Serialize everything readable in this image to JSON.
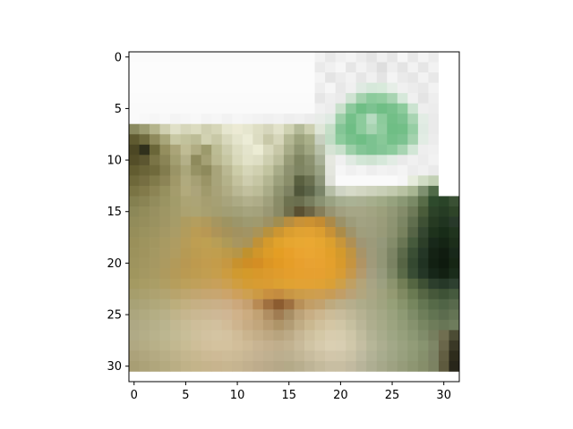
{
  "chart_data": {
    "type": "heatmap",
    "title": "",
    "xlabel": "",
    "ylabel": "",
    "grid": false,
    "xlim": [
      -0.5,
      31.5
    ],
    "ylim": [
      31.5,
      -0.5
    ],
    "x_ticks": [
      0,
      5,
      10,
      15,
      20,
      25,
      30
    ],
    "y_ticks": [
      0,
      5,
      10,
      15,
      20,
      25,
      30
    ],
    "x_tick_labels": [
      "0",
      "5",
      "10",
      "15",
      "20",
      "25",
      "30"
    ],
    "y_tick_labels": [
      "0",
      "5",
      "10",
      "15",
      "20",
      "25",
      "30"
    ],
    "image_size": [
      32,
      32
    ],
    "rows": [
      "#fbfbfb #fbfbfb #fbfbfb #fbfbfb #fbfbfb #fbfbfb #fbfbfb #fbfbfb #fbfbfb #fbfbfb #fbfbfb #fbfbfb #fbfbfb #fbfbfb #fbfbfb #fbfbfb #fbfbfb #fbfbfb #f2f2f2 #e8e8e8 #f0f0f0 #f4f4f4 #ececec #e4e4e4 #f0f0f0 #e6e6e6 #f6f6f6 #e8e8e8 #f4f4f4 #ececec #ffffff #ffffff",
      "#fcfcfc #fcfcfc #fcfcfc #fcfcfc #fcfcfc #fcfcfc #fcfcfc #fcfcfc #fcfcfc #fcfcfc #fcfcfc #fcfcfc #fcfcfc #fcfcfc #fcfcfc #fcfcfc #fcfcfc #fcfcfc #eaeaea #f0f0f0 #f6f6f6 #e6e6e6 #f2f2f2 #eaeaea #dedede #eeeeee #e4e4e4 #f2f2f2 #e6e6e6 #f2f2f2 #ffffff #ffffff",
      "#fcfcfc #fcfcfc #fcfcfc #fcfcfc #fcfcfc #fcfcfc #fcfcfc #fcfcfc #fcfcfc #fcfcfc #fcfcfc #fcfcfc #fcfcfc #fcfcfc #fcfcfc #fcfcfc #fcfcfc #fcfcfc #f4f4f4 #e4e4e4 #ececec #f2f2f2 #e6e6e6 #f0f0f0 #e4e4e4 #f4f4f4 #eaeaea #e6e6e6 #f2f2f2 #e8e8e8 #ffffff #ffffff",
      "#fcfcfc #fcfcfc #fcfcfc #fcfcfc #fcfcfc #fcfcfc #fcfcfc #fcfcfc #fcfcfc #fcfcfc #fcfcfc #fcfcfc #fcfcfc #fcfcfc #fcfcfc #fcfcfc #fcfcfc #fcfcfc #eeeeee #f6f6f6 #e8e8e8 #f0f0f0 #dfeae2 #d6e8da #d8eadb #e6eee7 #f0f0f0 #ececec #e8e8e8 #f2f2f2 #ffffff #ffffff",
      "#fbfbfb #fbfbfb #fbfbfb #fbfbfb #fbfbfb #fbfbfb #fbfbfb #fbfbfb #fbfbfb #fbfbfb #fbfbfb #fbfbfb #fbfbfb #fbfbfb #fbfbfb #fbfbfb #fbfbfb #fbfbfb #e6e6e6 #eeeeee #eaeaea #cfe3d2 #a4d2ae #8ccb9c #92cda0 #a8d4b2 #d6e8da #f0f0f0 #e4e4e4 #eeeeee #ffffff #ffffff",
      "#fafafa #fafafa #fafafa #fafafa #fafafa #fafafa #fafafa #fafafa #fafafa #fafafa #fafafa #fafafa #fafafa #fafafa #fafafa #fafafa #fafafa #fafafa #f0f0f0 #ececec #c8e0cb #8cc99c #6fbe85 #7cc290 #6fbe85 #78c18c #8ccb9c #cbe3d0 #eeeeee #ececec #ffffff #ffffff",
      "#fafafa #f8f8f8 #f6f6f6 #f8f8f8 #f4f4f4 #f6f6f6 #f8f8f8 #f4f4f4 #f6f6f6 #f2f2f2 #f6f6f6 #f4f4f4 #f2f2f2 #f0f0f0 #f2f2f2 #eeeeee #f0f0f0 #ececec #e8ece8 #dfeae2 #9ccfa8 #74c089 #8ccb9c #b6dbc0 #8ccb9c #72bf87 #7cc290 #a8d4b2 #e2ece4 #eaeaea #ffffff #ffffff",
      "#8a8a60 #9c9c72 #b4b48c #cfcfb0 #e0e0c8 #d6d6ba #dcdcc0 #cfcfb0 #d6d6b8 #e6e6cf #ecead4 #e6e6cf #dedec4 #d6d6bc #e2e2ca #cfd2b2 #b4ba98 #cccfb0 #dfe6d8 #c6dfc8 #84c596 #6fbe85 #8ccb9c #a8d4b2 #90cc9f #6fbe85 #72bf87 #96cea4 #dfeae2 #eaeaea #ffffff #ffffff",
      "#5f5a30 #6e6a3e #8e8a5c #a8a67a #c8c8a4 #c2c29c #bcbc96 #d2d2b2 #c8c8a6 #d8d8bc #e4e4cc #ececd6 #dcdcc2 #c8c8a8 #d6d6ba #b4b894 #9ca27c #aab08a #c8d0c0 #c0dcc4 #8ccb9c #78c18c #6fbe85 #7cc290 #88c898 #74c089 #7cc290 #a4d2ae #e2ece4 #ececec #ffffff #ffffff",
      "#4c4724 #30301c #6a6638 #948e5e #aaa478 #c0bc94 #b0ac82 #9c9a6c #bcbc94 #ccccac #dcdcc0 #e4e4cc #ececd4 #d8d8bc #c8c8a8 #a8ac88 #8e9470 #a0a682 #b8c0a8 #d6e3d4 #c8e0cb #9ccfa8 #84c596 #7cc290 #84c596 #8ccb9c #a8d4b2 #d2e6d6 #eeeeee #f0f0f0 #ffffff #ffffff",
      "#544e28 #5c5630 #7a7446 #8a8456 #a29e70 #b4b088 #8e8a5c #a4a074 #bab890 #c6c6a2 #d8d8ba #e2e2c8 #dedec4 #cecfb0 #bcbe9c #989c78 #7e8460 #8c9270 #a8b096 #e6e8e0 #f0f0f0 #e0eae2 #d2e6d6 #cfe3d2 #d6e8da #e2ece4 #eaeaea #f0f0f0 #ececec #f2f2f2 #ffffff #ffffff",
      "#625c30 #6a6438 #706a3c #827c4e #9a9466 #aaa67a #969264 #8e8a5c #a8a47a #bab892 #cccca8 #d6d6b8 #d0d0b0 #c2c4a0 #a8ac88 #8e9270 #7e8462 #868c6a #9aa284 #e4e6de #f6f6f6 #f0f0f0 #f4f4f4 #eeeeee #f2f2f2 #f0f0f0 #f4f4f4 #ececec #f0f0f0 #eaeaea #ffffff #ffffff",
      "#6e683a #766e42 #807a4a #8c8456 #a09868 #b0aa7e #a6a074 #9a9466 #a8a47a #b4b28a #c4c29e #cecdae #c6c6a4 #b4b692 #9ca07c #8a8e6a #5a6040 #6a7050 #8c9478 #e0e2da #fafafa #fafafa #fafafa #fafafa #fafafa #fafafa #f6f6f6 #e6ecdc #d0dcc4 #c2d0b4 #ffffff #ffffff",
      "#7a7444 #827a4a #8c8454 #96905e #a49c6c #b2aa7c #aca47a #a09a6c #a8a278 #b0ac84 #bab894 #c2c09e #bcbc98 #aaac88 #909470 #7e8262 #50563a #5c6448 #7a8468 #b6bea6 #cfd4c4 #d6dac8 #d2d6c2 #cdd2bc #c8cfb6 #c2caae #b8c2a2 #a8b692 #7e9070 #506a48 #ffffff #ffffff",
      "#848050 #8a8454 #928c5c #9a9462 #a29c6a #aca474 #aca476 #a69e70 #a6a074 #a8a47c #acaa84 #b2b08c #aeac88 #a0a07c #8a8c68 #6e7250 #6a6e4e #787e5e #8a9272 #9aa282 #a6ae90 #aab294 #aab092 #a6ae8c #a0aa86 #96a27e #8a9874 #7a8a66 #586c48 #2e4a2c #2a4428 #3a5034",
      "#8c8858 #928c5a #989060 #9e9664 #a49c6a #aca270 #aca472 #a8a070 #a49e70 #a29e74 #a2a078 #a6a47e #a4a27c #9a9874 #8a8a66 #706e4c #5a5032 #6c6444 #867e5a #989472 #a2a080 #a6a686 #a6a686 #a2a482 #9ca07c #929876 #848c6a #6e7a58 #4a5c3a #2c4228 #263c24 #2e4428",
      "#928c5a #968e5c #9a9260 #a09664 #a69c68 #ae9c60 #b49e5e #b09a5c #a69660 #9e9462 #9c966a #9e9a70 #a09a6e #9e9264 #a28e50 #b88e40 #c89238 #cc9232 #c48c32 #ac8a48 #9c9268 #9e9c7a #a2a282 #a0a080 #9a9c7a #8e9472 #7c8664 #606e4e #3e5034 #263a22 #203420 #28392a",
      "#968e5a #9a925e #9e9460 #a49864 #aa9c66 #b29c5c #ba9c54 #b89854 #ae9458 #a6925a #a29260 #a29464 #aa9458 #b8923e #cc9632 #da9e30 #e0a232 #e2a232 #dc9e30 #c89236 #ac8c48 #a0946a #a09e7c #9e9e7e #989a78 #8c9270 #78825e #566446 #344630 #1e321c #182c18 #20341e",
      "#9a905a #9e945e #a29660 #a89a62 #ae9c62 #b69c58 #be9e52 #bea052 #b89e56 #ae9a58 #a89660 #aa9458 #c09238 #d49a2c #e0a22c #e6a630 #e8a832 #eaa832 #e6a630 #dca02e #c8963a #b09054 #a09674 #9c9a7a #94987a #848c6a #6a7654 #465a3c #2c3e28 #18281a #142414 #1c2e1a",
      "#9c925c #a0945e #a49862 #aa9a62 #b09c60 #b69a54 #bc9c50 #c09e50 #c09e4e #bc9a4a #b69648 #c0922e #d0962a #dc9c28 #e49e24 #e8a02a #eaa430 #eaa632 #e8a430 #e2a02a #d49a2c #c09442 #a89468 #9e9a7a #929676 #7c8464 #5c6a4a #3a4e34 #243626 #142214 #101c10 #18281a",
      "#9e945e #a29660 #a69862 #ac9a60 #b29a5a #b89852 #be9a4e #c29c4e #c49c4a #c69842 #c8922e #ce8e26 #d48e24 #dc9624 #e29a24 #e69e28 #e8a02e #e8a232 #e8a230 #e4a02c #d89a2c #c69440 #b09464 #a09a7a #929676 #7a8262 #566444 #344830 #203222 #122012 #0e1a0e #162614",
      "#a0965e #a49862 #a89a62 #ae9a5e #b49a58 #ba9a52 #be9c50 #c29e50 #c69e4c #cc9c40 #d09a30 #d49a2a #d8982a #dc9a2c #e09c2c #e49e2c #e6a02e #e6a030 #e6a030 #e2a02e #d89c34 #c6984c #b49a6c #a49e80 #969a7c #7e8866 #5a6a48 #384c34 #243626 #162618 #122012 #1a2c1a",
      "#a49a62 #a89c64 #aa9e66 #b09e62 #b69e5c #bca05a #c0a05a #c4a05a #c8a05a #cca050 #d09e40 #d49c34 #d89c32 #da9c32 #dca032 #e0a232 #e2a234 #e2a234 #e0a234 #daa036 #cea048 #c0a062 #b4a478 #a8a484 #9ca080 #8c946e #727e56 #556642 #3e5034 #2c3e2c #263828 #2e4030",
      "#a69e6c #aaa06e #aea270 #b2a470 #b8a46c #bea66e #c2a670 #c6a670 #c8a670 #cca46a #cea05c #cea050 #cc9a44 #c89040 #c48c40 #c89644 #cc9c48 #ce9e4c #ce9e50 #c89c56 #c29e66 #baa276 #b2a67e #aaa684 #a0a27e #949a72 #808a62 #6a7a52 #566644 #46583a #3e5236 #465a3e",
      "#a8a276 #aca478 #b0a87a #b4aa7c #bcae7c #c2b080 #c6b084 #c8b086 #cab088 #ccae86 #cca87c #c6a070 #b88a54 #a07040 #8c5c30 #9e7040 #b89058 #c29e66 #c2a26e #beaa7e #bcae88 #b6ae8c #aeac8a #a8a886 #a0a480 #96a078 #88946c #76865e #647652 #566a48 #506446 #58694c",
      "#aca67e #b0aa80 #b4ae84 #b8b088 #c0b48a #c6b68e #cab892 #ccb894 #ceb896 #d0b694 #d0b28a #ccac80 #c2a274 #b08e62 #a07c52 #a88e64 #bca278 #c8ae84 #ccb68e #ccbc98 #c8bc9c #c0b898 #b6b292 #acac8c #a4a886 #9aa27e #8e9a74 #7e8c68 #6e7e5a #627452 #5c6c4e #647454",
      "#aea884 #b2ac86 #b6b08a #bab48e #c2b892 #c8bc96 #cebe9a #d0c09c #d2c09e #d2bc98 #ceb48e #c8ac84 #c2a67c #b89c72 #ae9468 #b29c74 #c0ac84 #cab890 #d0c09c #d4c6a4 #d0c6a6 #c6c0a0 #bab698 #aeae8e #a6aa88 #9ca480 #929c78 #86926e #788662 #6e7c5a #687656 #6e7c5c",
      "#b0aa86 #b4ae88 #b8b28c #bcb690 #c2ba94 #c8be98 #cec09c #d2c2a0 #d4c4a2 #d4c2a0 #d0bc98 #cab48e #c4ae88 #bea882 #b8a47e #bcaa86 #c6b694 #cec09e #d4c8a6 #d8ccae #d6ccae #cec6a8 #c0bc9e #b2b294 #a8ac8c #9ea684 #96a07c #8c9874 #808c6a #767e5e #706e50 #4c4c34",
      "#b0a882 #b4ac84 #b8b088 #bcb48c #c2b890 #c8bc94 #cebe98 #d2c09c #d4c29e #d4c29e #d2be9a #ceba96 #c8b492 #c4b08e #c0ae8c #c2b290 #c8ba9a #d0c4a4 #d6caac #dacfb2 #d8ceb2 #d0c8aa #c4bea2 #b6b698 #acae90 #a2a888 #9aa280 #929c78 #889470 #7e8666 #6a664a #3a3826",
      "#aca27a #b0a67e #b4aa82 #b8ae86 #beb28a #c4b68e #c8b890 #ccba94 #ceba96 #cebc98 #ccba96 #c8b694 #c4b292 #c0b090 #bcae8e #bcb090 #c2b696 #c8bc9e #cec2a4 #d2c6aa #d0c6aa #cac2a6 #bebaa0 #b2b296 #a8ac8e #a0a686 #98a07e #909a76 #86906c #7c8264 #625e42 #2e2c1c",
      "#a89e74 #aca278 #b0a67c #b4aa80 #baae84 #c0b288 #c4b48a #c6b48c #c8b48e #c8b690 #c6b490 #c2b08e #beac8c #baaa8a #b6a888 #b4aa88 #b8ae8e #beb496 #c4ba9c #c8bea2 #c8bea2 #c2baa0 #b8b49a #aeae92 #a6a88a #9ea282 #969c7a #8e9672 #868e6a #7c8262 #5e5a3e #28261a"
    ]
  }
}
